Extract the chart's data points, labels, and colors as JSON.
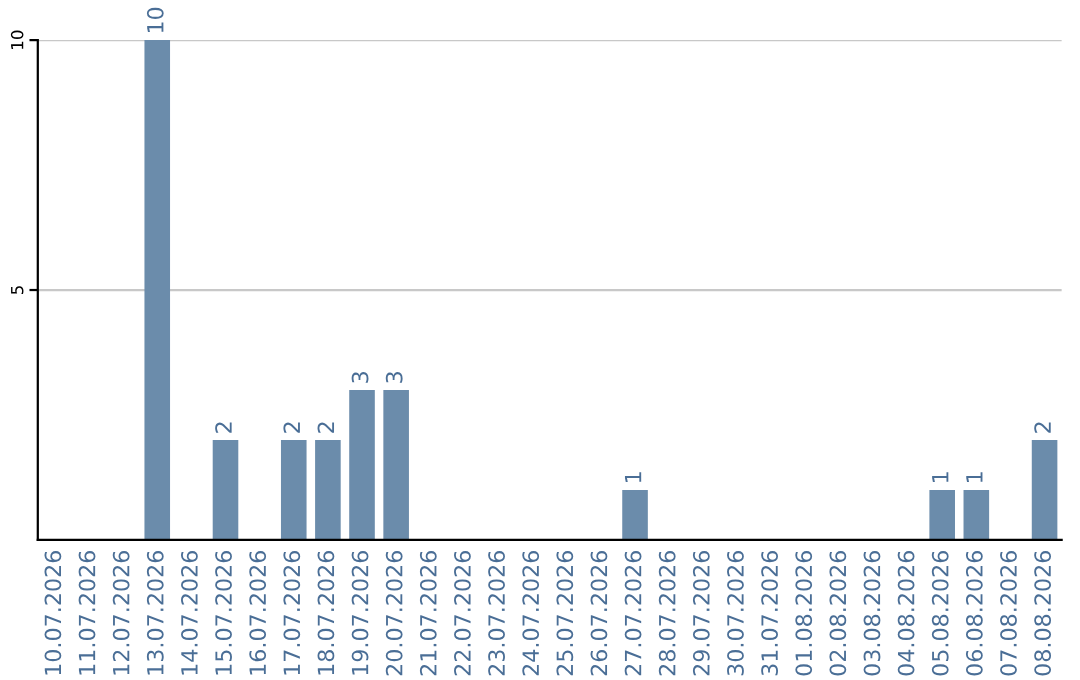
{
  "chart_data": {
    "type": "bar",
    "categories": [
      "10.07.2026",
      "11.07.2026",
      "12.07.2026",
      "13.07.2026",
      "14.07.2026",
      "15.07.2026",
      "16.07.2026",
      "17.07.2026",
      "18.07.2026",
      "19.07.2026",
      "20.07.2026",
      "21.07.2026",
      "22.07.2026",
      "23.07.2026",
      "24.07.2026",
      "25.07.2026",
      "26.07.2026",
      "27.07.2026",
      "28.07.2026",
      "29.07.2026",
      "30.07.2026",
      "31.07.2026",
      "01.08.2026",
      "02.08.2026",
      "03.08.2026",
      "04.08.2026",
      "05.08.2026",
      "06.08.2026",
      "07.08.2026",
      "08.08.2026"
    ],
    "values": [
      0,
      0,
      0,
      10,
      0,
      2,
      0,
      2,
      2,
      3,
      3,
      0,
      0,
      0,
      0,
      0,
      0,
      1,
      0,
      0,
      0,
      0,
      0,
      0,
      0,
      0,
      1,
      1,
      0,
      2
    ],
    "value_labels": [
      null,
      null,
      null,
      "10",
      null,
      "2",
      null,
      "2",
      "2",
      "3",
      "3",
      null,
      null,
      null,
      null,
      null,
      null,
      "1",
      null,
      null,
      null,
      null,
      null,
      null,
      null,
      null,
      "1",
      "1",
      null,
      "2"
    ],
    "color": "#6b8cab",
    "ylim": [
      0,
      10
    ],
    "yticks": [
      5,
      10
    ],
    "grid": "y",
    "legend": false
  }
}
